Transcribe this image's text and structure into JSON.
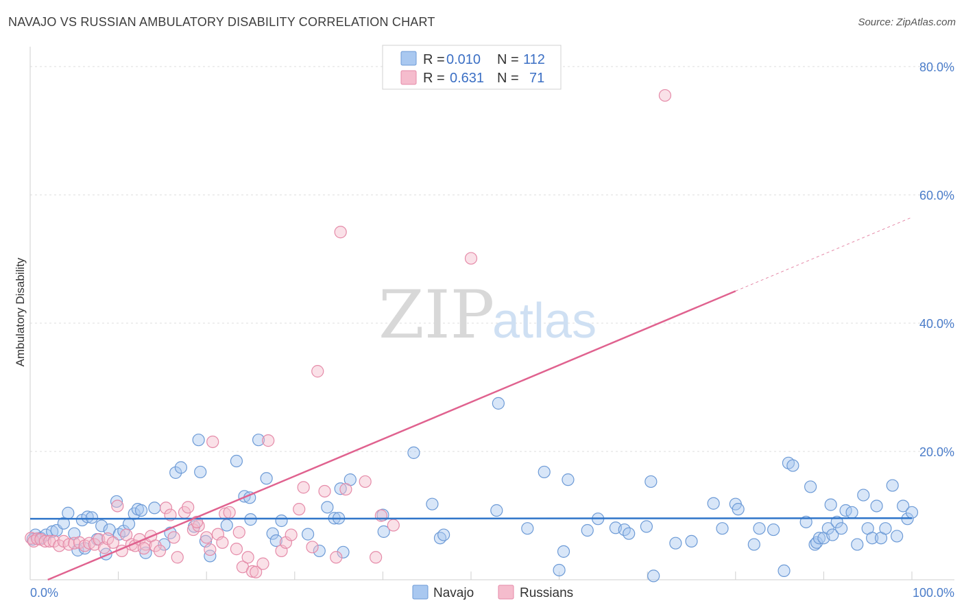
{
  "title": "NAVAJO VS RUSSIAN AMBULATORY DISABILITY CORRELATION CHART",
  "source": "Source: ZipAtlas.com",
  "watermark": {
    "zip": "ZIP",
    "atlas": "atlas"
  },
  "legend": {
    "rows": [
      {
        "r_label": "R =",
        "r_value": "0.010",
        "n_label": "N =",
        "n_value": "112"
      },
      {
        "r_label": "R =",
        "r_value": "0.631",
        "n_label": "N =",
        "n_value": "71"
      }
    ]
  },
  "bottom_legend": [
    "Navajo",
    "Russians"
  ],
  "colors": {
    "navajo_fill": "#a9c8f0",
    "navajo_stroke": "#6c9ad6",
    "navajo_line": "#2e74c9",
    "russian_fill": "#f5bccd",
    "russian_stroke": "#e58aa8",
    "russian_line": "#e0628f"
  },
  "chart_data": {
    "type": "scatter",
    "title": "NAVAJO VS RUSSIAN AMBULATORY DISABILITY CORRELATION CHART",
    "xlabel": "",
    "ylabel": "Ambulatory Disability",
    "xlim": [
      0,
      100
    ],
    "ylim": [
      0,
      80
    ],
    "x_tick_labels": [
      "0.0%",
      "100.0%"
    ],
    "y_ticks": [
      20,
      40,
      60,
      80
    ],
    "y_tick_labels": [
      "20.0%",
      "40.0%",
      "60.0%",
      "80.0%"
    ],
    "grid": true,
    "legend_position": "top-center",
    "series": [
      {
        "name": "Navajo",
        "r": 0.01,
        "n": 112,
        "trend": {
          "x": [
            0,
            100
          ],
          "y": [
            9.5,
            9.6
          ]
        },
        "points": [
          [
            0.6,
            7.0
          ],
          [
            1.2,
            6.5
          ],
          [
            1.8,
            7.0
          ],
          [
            2.5,
            7.5
          ],
          [
            3.0,
            7.7
          ],
          [
            3.8,
            8.8
          ],
          [
            4.3,
            10.4
          ],
          [
            5.0,
            7.2
          ],
          [
            5.4,
            4.6
          ],
          [
            5.9,
            9.3
          ],
          [
            6.2,
            4.9
          ],
          [
            6.5,
            9.8
          ],
          [
            7.0,
            9.7
          ],
          [
            7.6,
            6.3
          ],
          [
            8.1,
            8.4
          ],
          [
            8.6,
            4.0
          ],
          [
            9.0,
            7.8
          ],
          [
            9.8,
            12.2
          ],
          [
            10.1,
            7.1
          ],
          [
            10.6,
            7.6
          ],
          [
            11.2,
            8.7
          ],
          [
            11.8,
            10.3
          ],
          [
            12.2,
            11.0
          ],
          [
            12.6,
            10.8
          ],
          [
            13.1,
            4.2
          ],
          [
            14.1,
            11.2
          ],
          [
            15.2,
            5.5
          ],
          [
            15.9,
            7.3
          ],
          [
            16.5,
            16.7
          ],
          [
            17.1,
            17.5
          ],
          [
            18.6,
            8.3
          ],
          [
            19.3,
            16.8
          ],
          [
            19.9,
            6.0
          ],
          [
            20.4,
            3.7
          ],
          [
            19.1,
            21.8
          ],
          [
            22.3,
            8.5
          ],
          [
            23.4,
            18.5
          ],
          [
            24.3,
            13.0
          ],
          [
            24.9,
            12.8
          ],
          [
            25.0,
            9.4
          ],
          [
            25.9,
            21.8
          ],
          [
            26.8,
            15.8
          ],
          [
            27.5,
            7.2
          ],
          [
            27.9,
            6.1
          ],
          [
            28.5,
            9.2
          ],
          [
            31.5,
            7.1
          ],
          [
            32.8,
            4.5
          ],
          [
            33.7,
            11.3
          ],
          [
            34.5,
            9.6
          ],
          [
            35.0,
            9.6
          ],
          [
            35.2,
            14.2
          ],
          [
            35.5,
            4.3
          ],
          [
            36.3,
            15.6
          ],
          [
            40.0,
            10.1
          ],
          [
            40.1,
            7.5
          ],
          [
            43.5,
            19.8
          ],
          [
            45.6,
            11.8
          ],
          [
            46.5,
            6.5
          ],
          [
            46.9,
            7.0
          ],
          [
            52.9,
            10.8
          ],
          [
            53.1,
            27.5
          ],
          [
            56.4,
            8.0
          ],
          [
            58.3,
            16.8
          ],
          [
            60.0,
            1.5
          ],
          [
            60.5,
            4.4
          ],
          [
            61.0,
            15.6
          ],
          [
            63.2,
            7.7
          ],
          [
            64.4,
            9.5
          ],
          [
            66.4,
            8.1
          ],
          [
            67.4,
            7.8
          ],
          [
            67.9,
            7.2
          ],
          [
            69.9,
            8.3
          ],
          [
            70.4,
            15.3
          ],
          [
            70.7,
            0.6
          ],
          [
            73.2,
            5.7
          ],
          [
            75.0,
            6.0
          ],
          [
            77.5,
            11.9
          ],
          [
            78.5,
            8.0
          ],
          [
            80.0,
            11.8
          ],
          [
            80.3,
            11.0
          ],
          [
            82.1,
            5.5
          ],
          [
            82.7,
            8.0
          ],
          [
            84.3,
            7.8
          ],
          [
            85.5,
            1.4
          ],
          [
            86.0,
            18.2
          ],
          [
            86.5,
            17.8
          ],
          [
            88.0,
            9.0
          ],
          [
            88.5,
            14.5
          ],
          [
            89.0,
            5.5
          ],
          [
            89.2,
            5.8
          ],
          [
            89.5,
            6.5
          ],
          [
            90.0,
            6.5
          ],
          [
            90.5,
            8.0
          ],
          [
            90.8,
            11.7
          ],
          [
            91.0,
            7.0
          ],
          [
            91.5,
            9.0
          ],
          [
            92.0,
            8.0
          ],
          [
            92.5,
            10.8
          ],
          [
            93.2,
            10.5
          ],
          [
            93.8,
            5.5
          ],
          [
            94.5,
            13.2
          ],
          [
            95.0,
            8.0
          ],
          [
            95.5,
            6.5
          ],
          [
            96.0,
            11.5
          ],
          [
            96.5,
            6.5
          ],
          [
            97.0,
            8.0
          ],
          [
            97.8,
            14.7
          ],
          [
            98.3,
            6.8
          ],
          [
            99.0,
            11.5
          ],
          [
            99.5,
            9.5
          ],
          [
            100.0,
            10.5
          ],
          [
            0.3,
            6.3
          ]
        ]
      },
      {
        "name": "Russians",
        "r": 0.631,
        "n": 71,
        "trend": {
          "x": [
            2.0,
            80.0
          ],
          "y": [
            0.0,
            45.0
          ]
        },
        "trend_dashed": {
          "x": [
            80.0,
            100.0
          ],
          "y": [
            45.0,
            56.5
          ]
        },
        "points": [
          [
            0.1,
            6.5
          ],
          [
            0.4,
            6.0
          ],
          [
            0.8,
            6.4
          ],
          [
            1.2,
            6.3
          ],
          [
            1.7,
            6.0
          ],
          [
            2.2,
            6.0
          ],
          [
            2.7,
            6.0
          ],
          [
            3.3,
            5.3
          ],
          [
            3.8,
            6.0
          ],
          [
            4.4,
            5.5
          ],
          [
            5.0,
            5.7
          ],
          [
            5.6,
            5.8
          ],
          [
            6.2,
            5.3
          ],
          [
            6.7,
            5.7
          ],
          [
            7.3,
            5.5
          ],
          [
            7.8,
            6.3
          ],
          [
            8.4,
            5.0
          ],
          [
            8.8,
            6.4
          ],
          [
            9.4,
            5.8
          ],
          [
            9.9,
            11.5
          ],
          [
            10.4,
            4.5
          ],
          [
            10.9,
            7.0
          ],
          [
            11.5,
            5.5
          ],
          [
            11.9,
            5.3
          ],
          [
            12.4,
            6.3
          ],
          [
            13.1,
            5.5
          ],
          [
            13.7,
            6.8
          ],
          [
            14.2,
            5.3
          ],
          [
            14.7,
            4.5
          ],
          [
            15.4,
            11.2
          ],
          [
            15.9,
            10.1
          ],
          [
            16.3,
            6.6
          ],
          [
            16.7,
            3.5
          ],
          [
            17.5,
            10.5
          ],
          [
            17.9,
            11.3
          ],
          [
            18.5,
            7.8
          ],
          [
            19.1,
            8.4
          ],
          [
            20.0,
            6.6
          ],
          [
            20.7,
            21.5
          ],
          [
            21.3,
            7.1
          ],
          [
            21.8,
            5.8
          ],
          [
            22.1,
            10.3
          ],
          [
            22.6,
            10.5
          ],
          [
            23.4,
            4.8
          ],
          [
            23.7,
            7.4
          ],
          [
            24.1,
            2.0
          ],
          [
            24.7,
            3.5
          ],
          [
            25.2,
            1.3
          ],
          [
            25.6,
            1.2
          ],
          [
            26.4,
            2.5
          ],
          [
            27.0,
            21.7
          ],
          [
            28.5,
            4.5
          ],
          [
            29.0,
            5.8
          ],
          [
            29.6,
            7.0
          ],
          [
            31.0,
            14.4
          ],
          [
            32.0,
            5.1
          ],
          [
            32.6,
            32.5
          ],
          [
            33.4,
            13.8
          ],
          [
            34.7,
            3.5
          ],
          [
            35.2,
            54.2
          ],
          [
            35.8,
            14.1
          ],
          [
            38.0,
            15.3
          ],
          [
            39.2,
            3.5
          ],
          [
            39.8,
            10.0
          ],
          [
            41.2,
            8.5
          ],
          [
            50.0,
            50.1
          ],
          [
            72.0,
            75.5
          ],
          [
            30.5,
            11.0
          ],
          [
            20.4,
            4.7
          ],
          [
            18.9,
            9.0
          ],
          [
            12.9,
            4.9
          ]
        ]
      }
    ]
  }
}
